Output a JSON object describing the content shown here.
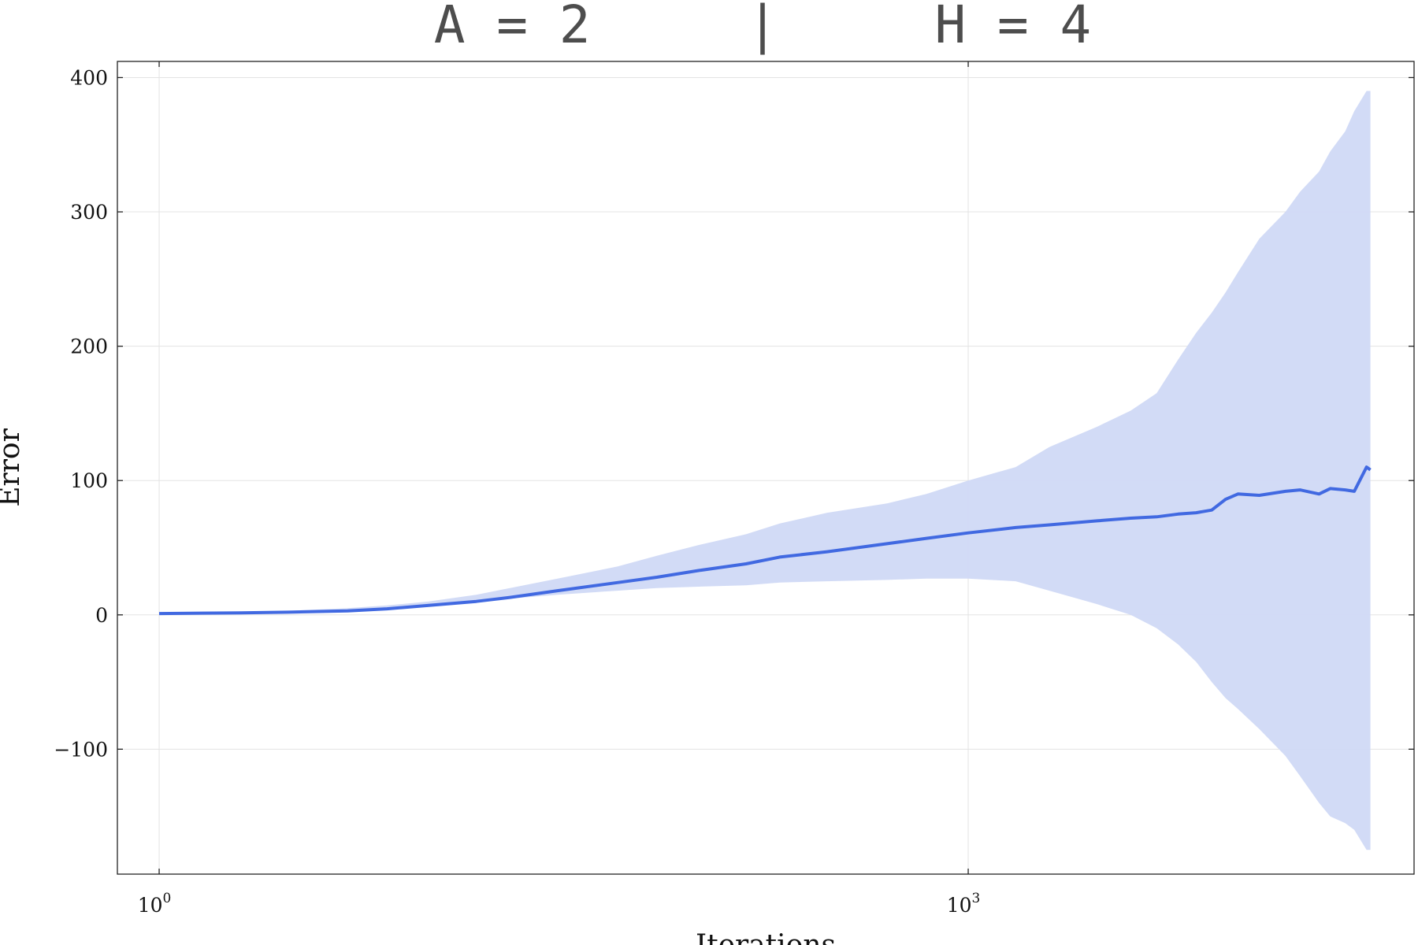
{
  "chart_data": {
    "type": "line",
    "title": "A = 2     |     H = 4",
    "xlabel": "Iterations",
    "ylabel": "Error",
    "xscale": "log10",
    "xlim": [
      0.7,
      45000
    ],
    "ylim": [
      -193,
      412
    ],
    "grid": true,
    "legend": "none",
    "x_ticks": [
      {
        "base": "10",
        "exp": "0",
        "value": 1
      },
      {
        "base": "10",
        "exp": "3",
        "value": 1000
      }
    ],
    "y_ticks": [
      {
        "label": "400",
        "value": 400
      },
      {
        "label": "300",
        "value": 300
      },
      {
        "label": "200",
        "value": 200
      },
      {
        "label": "100",
        "value": 100
      },
      {
        "label": "0",
        "value": 0
      },
      {
        "label": "−100",
        "value": -100
      }
    ],
    "colors": {
      "line": "#4169e1",
      "band": "#d0d9f6",
      "title": "#4d4d4d"
    },
    "series": [
      {
        "x": [
          1,
          2,
          3,
          5,
          7,
          10,
          15,
          20,
          30,
          50,
          70,
          100,
          150,
          200,
          300,
          500,
          700,
          1000,
          1500,
          2000,
          3000,
          4000,
          5000,
          6000,
          7000,
          8000,
          9000,
          10000,
          12000,
          15000,
          17000,
          20000,
          22000,
          25000,
          27000,
          30000,
          31000
        ],
        "y": [
          1,
          1.5,
          2,
          3,
          4.5,
          7,
          10,
          13,
          18,
          24,
          28,
          33,
          38,
          43,
          47,
          53,
          57,
          61,
          65,
          67,
          70,
          72,
          73,
          75,
          76,
          78,
          86,
          90,
          89,
          92,
          93,
          90,
          94,
          93,
          92,
          110,
          108
        ],
        "upper": [
          1,
          2,
          3,
          5,
          7,
          10,
          15,
          20,
          27,
          36,
          44,
          52,
          60,
          68,
          76,
          83,
          90,
          100,
          110,
          125,
          140,
          152,
          165,
          190,
          210,
          225,
          240,
          255,
          280,
          300,
          315,
          330,
          345,
          360,
          375,
          390,
          390
        ],
        "lower": [
          1,
          1,
          1.5,
          2.5,
          4,
          6,
          9,
          12,
          15,
          18,
          20,
          21,
          22,
          24,
          25,
          26,
          27,
          27,
          25,
          18,
          8,
          0,
          -10,
          -22,
          -35,
          -50,
          -62,
          -70,
          -85,
          -105,
          -120,
          -140,
          -150,
          -155,
          -160,
          -175,
          -175
        ]
      }
    ]
  }
}
